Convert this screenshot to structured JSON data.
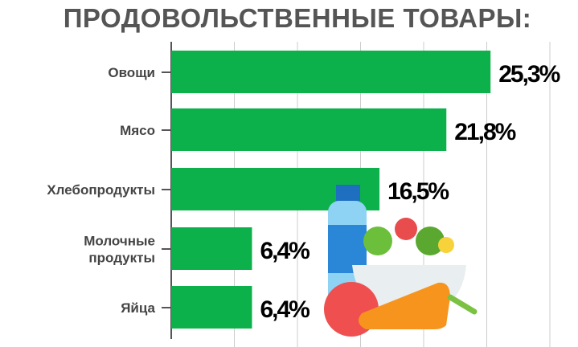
{
  "chart_data": {
    "type": "bar",
    "orientation": "horizontal",
    "title": "ПРОДОВОЛЬСТВЕННЫЕ ТОВАРЫ:",
    "categories": [
      [
        "Овощи"
      ],
      [
        "Мясо"
      ],
      [
        "Хлебопродукты"
      ],
      [
        "Молочные",
        "продукты"
      ],
      [
        "Яйца"
      ]
    ],
    "values": [
      25.3,
      21.8,
      16.5,
      6.4,
      6.4
    ],
    "labels": [
      "25,3%",
      "21,8%",
      "16,5%",
      "6,4%",
      "6,4%"
    ],
    "xlim": [
      0,
      30
    ],
    "grid_step": 5,
    "grid": true,
    "bar_color": "#0db14b"
  }
}
